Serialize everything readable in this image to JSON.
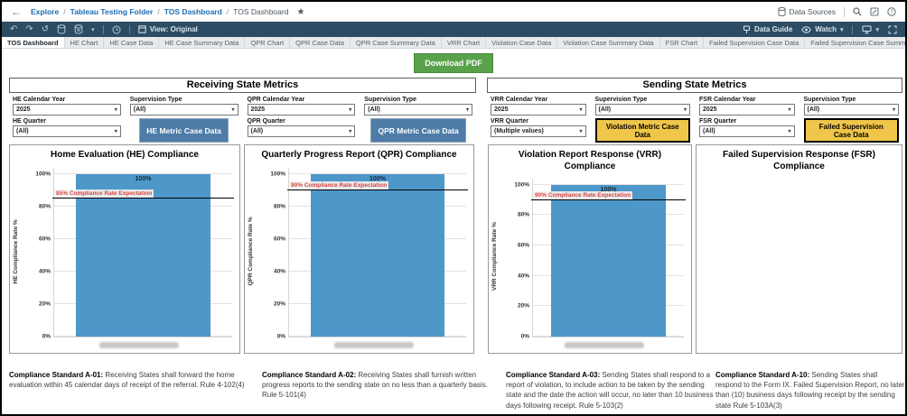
{
  "theme": {
    "bar_blue": "#4E97C9",
    "button_blue": "#4E7CA7",
    "button_yellow": "#F0C64A",
    "green": "#59A14B",
    "toolbar_bg": "#2B4C63",
    "link_blue": "#1C6CB0",
    "ref_red": "#D9453C"
  },
  "topnav": {
    "breadcrumb": [
      "Explore",
      "Tableau Testing Folder",
      "TOS Dashboard"
    ],
    "separator": "/",
    "current": "TOS Dashboard",
    "star_glyph": "★",
    "back_glyph": "←",
    "data_sources_label": "Data Sources"
  },
  "toolbar": {
    "undo_glyph": "↶",
    "redo_glyph": "↷",
    "revert_glyph": "↺",
    "caret_glyph": "▾",
    "view_label": "View: Original",
    "data_guide_label": "Data Guide",
    "watch_label": "Watch"
  },
  "tabs": {
    "active": "TOS Dashboard",
    "items": [
      "TOS Dashboard",
      "HE Chart",
      "HE Case Data",
      "HE Case Summary Data",
      "QPR Chart",
      "QPR Case Data",
      "QPR Case Summary Data",
      "VRR Chart",
      "Violation Case Data",
      "Violation Case Summary Data",
      "FSR Chart",
      "Failed Supervision Case Data",
      "Failed Supervision Case Summ..."
    ]
  },
  "download_button_label": "Download PDF",
  "sections": [
    {
      "title": "Receiving State Metrics",
      "columns": [
        {
          "top": {
            "label": "HE Calendar Year",
            "value": "2025"
          },
          "bottom": {
            "kind": "filter",
            "label": "HE Quarter",
            "value": "(All)"
          }
        },
        {
          "top": {
            "label": "Supervision Type",
            "value": "(All)"
          },
          "bottom": {
            "kind": "button",
            "label": "HE Metric Case Data",
            "style": "blue"
          }
        },
        {
          "top": {
            "label": "QPR Calendar Year",
            "value": "2025"
          },
          "bottom": {
            "kind": "filter",
            "label": "QPR Quarter",
            "value": "(All)"
          }
        },
        {
          "top": {
            "label": "Supervision Type",
            "value": "(All)"
          },
          "bottom": {
            "kind": "button",
            "label": "QPR Metric Case Data",
            "style": "blue"
          }
        }
      ]
    },
    {
      "title": "Sending State Metrics",
      "columns": [
        {
          "top": {
            "label": "VRR Calendar Year",
            "value": "2025"
          },
          "bottom": {
            "kind": "filter",
            "label": "VRR Quarter",
            "value": "(Multiple values)"
          }
        },
        {
          "top": {
            "label": "Supervision Type",
            "value": "(All)"
          },
          "bottom": {
            "kind": "button",
            "label": "Violation Metric Case Data",
            "style": "yellow"
          }
        },
        {
          "top": {
            "label": "FSR Calendar Year",
            "value": "2025"
          },
          "bottom": {
            "kind": "filter",
            "label": "FSR Quarter",
            "value": "(All)"
          }
        },
        {
          "top": {
            "label": "Supervision Type",
            "value": "(All)"
          },
          "bottom": {
            "kind": "button",
            "label": "Failed Supervision Case Data",
            "style": "yellow"
          }
        }
      ]
    }
  ],
  "chart_data": [
    {
      "type": "bar",
      "title": "Home Evaluation (HE) Compliance",
      "ylabel": "HE Compliance Rate %",
      "yticks": [
        100,
        80,
        60,
        40,
        20,
        0
      ],
      "tick_suffix": "%",
      "ymax": 104,
      "values": [
        100
      ],
      "bar_labels": [
        "100%"
      ],
      "category_redacted": true,
      "ref_line": {
        "value": 85,
        "label": "85% Compliance Rate Expectation"
      }
    },
    {
      "type": "bar",
      "title": "Quarterly Progress Report (QPR) Compliance",
      "ylabel": "QPR Compliance Rate %",
      "yticks": [
        100,
        80,
        60,
        40,
        20,
        0
      ],
      "tick_suffix": "%",
      "ymax": 104,
      "values": [
        100
      ],
      "bar_labels": [
        "100%"
      ],
      "category_redacted": true,
      "ref_line": {
        "value": 90,
        "label": "90% Compliance Rate Expectation"
      }
    },
    {
      "type": "bar",
      "title": "Violation Report Response (VRR) Compliance",
      "ylabel": "VRR Compliance Rate %",
      "yticks": [
        100,
        80,
        60,
        40,
        20,
        0
      ],
      "tick_suffix": "%",
      "ymax": 104,
      "values": [
        100
      ],
      "bar_labels": [
        "100%"
      ],
      "category_redacted": true,
      "ref_line": {
        "value": 90,
        "label": "90% Compliance Rate Expectation"
      }
    },
    {
      "type": "bar",
      "title": "Failed Supervision Response (FSR) Compliance",
      "empty": true,
      "values": []
    }
  ],
  "captions": [
    {
      "lead": "Compliance Standard A-01:",
      "body": "  Receiving States shall forward the home evaluation within 45 calendar days of receipt of the referral.  Rule 4-102(4)"
    },
    {
      "lead": "Compliance Standard A-02:",
      "body": "  Receiving States shall furnish written progress reports to the sending state on no less than a quarterly basis.   Rule 5-101(4)"
    },
    {
      "lead": "Compliance Standard A-03:",
      "body": "  Sending States shall respond to a report of violation, to include action to be taken by the sending state and the date the action will occur, no later than 10 business days following receipt.  Rule 5-103(2)"
    },
    {
      "lead": "Compliance Standard A-10:",
      "body": "  Sending States shall respond to the Form IX.  Failed Supervision Report, no later than (10) business days following receipt by the sending state  Rule 5-103A(3)"
    }
  ]
}
